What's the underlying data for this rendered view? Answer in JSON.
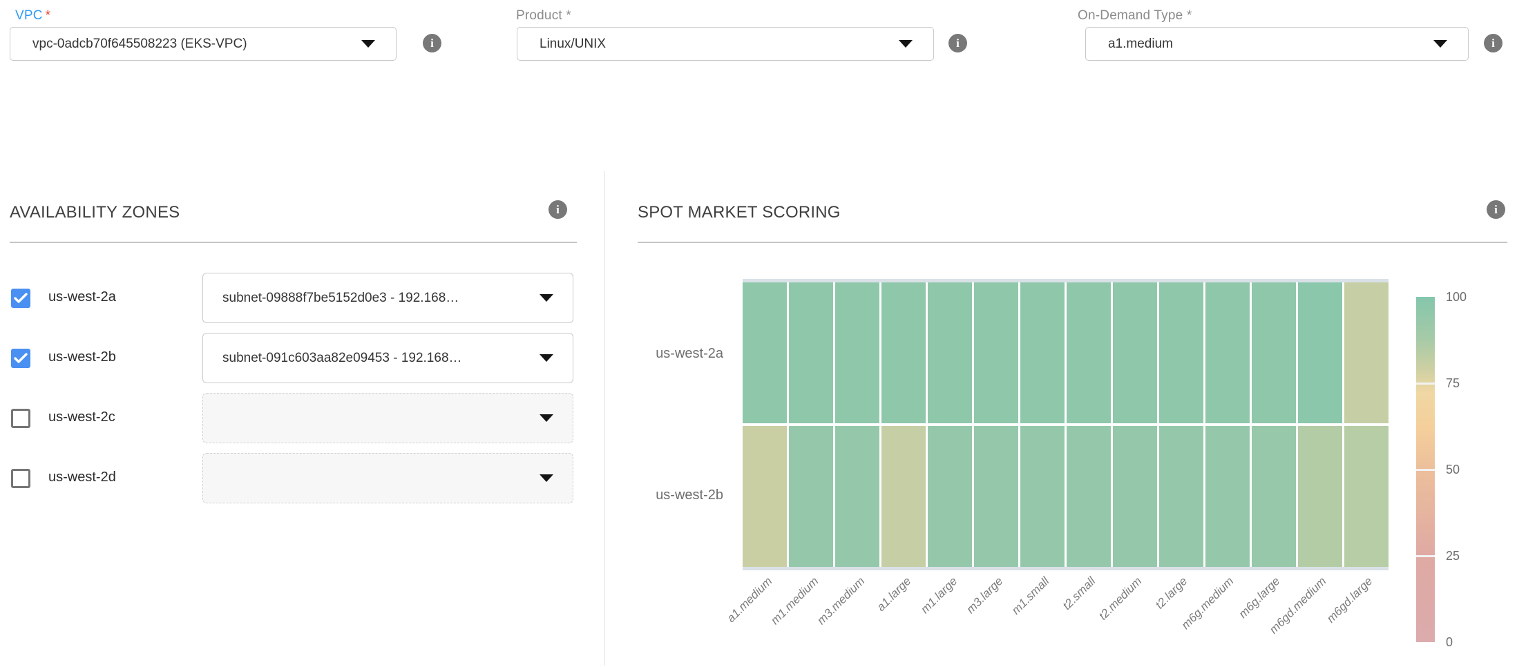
{
  "icons": {
    "info": "i"
  },
  "colors": {
    "vpc_label_blue": "#2f9bf5",
    "required_red": "#e8432e",
    "checkbox_checked_blue": "#4a90f2",
    "info_icon_gray": "#787878"
  },
  "form": {
    "vpc": {
      "label": "VPC",
      "required": "*",
      "value": "vpc-0adcb70f645508223 (EKS-VPC)"
    },
    "product": {
      "label": "Product *",
      "value": "Linux/UNIX"
    },
    "on_demand_type": {
      "label": "On-Demand Type *",
      "value": "a1.medium"
    }
  },
  "availability_zones": {
    "title": "AVAILABILITY ZONES",
    "zones": [
      {
        "name": "us-west-2a",
        "checked": true,
        "subnet": "subnet-09888f7be5152d0e3 - 192.168…"
      },
      {
        "name": "us-west-2b",
        "checked": true,
        "subnet": "subnet-091c603aa82e09453 - 192.168…"
      },
      {
        "name": "us-west-2c",
        "checked": false,
        "subnet": ""
      },
      {
        "name": "us-west-2d",
        "checked": false,
        "subnet": ""
      }
    ]
  },
  "spot_market_scoring": {
    "title": "SPOT MARKET SCORING"
  },
  "chart_data": {
    "type": "heatmap",
    "title": "SPOT MARKET SCORING",
    "x_categories": [
      "a1.medium",
      "m1.medium",
      "m3.medium",
      "a1.large",
      "m1.large",
      "m3.large",
      "m1.small",
      "t2.small",
      "t2.medium",
      "t2.large",
      "m6g.medium",
      "m6g.large",
      "m6gd.medium",
      "m6gd.large"
    ],
    "y_categories": [
      "us-west-2a",
      "us-west-2b"
    ],
    "values": [
      [
        96,
        96,
        96,
        96,
        96,
        96,
        96,
        96,
        96,
        96,
        96,
        96,
        98,
        81
      ],
      [
        80,
        94,
        94,
        81,
        94,
        94,
        94,
        94,
        94,
        94,
        94,
        93,
        85,
        84
      ]
    ],
    "colorbar": {
      "min": 0,
      "max": 100,
      "ticks": [
        100,
        75,
        50,
        25,
        0
      ],
      "stops": [
        {
          "v": 0,
          "c": "#dcabad"
        },
        {
          "v": 25,
          "c": "#dfa9a3"
        },
        {
          "v": 50,
          "c": "#ecbf9b"
        },
        {
          "v": 62,
          "c": "#f4cf9b"
        },
        {
          "v": 72,
          "c": "#f0d7a3"
        },
        {
          "v": 80,
          "c": "#c9cfa3"
        },
        {
          "v": 88,
          "c": "#a5caa7"
        },
        {
          "v": 100,
          "c": "#84c6ac"
        }
      ]
    }
  }
}
